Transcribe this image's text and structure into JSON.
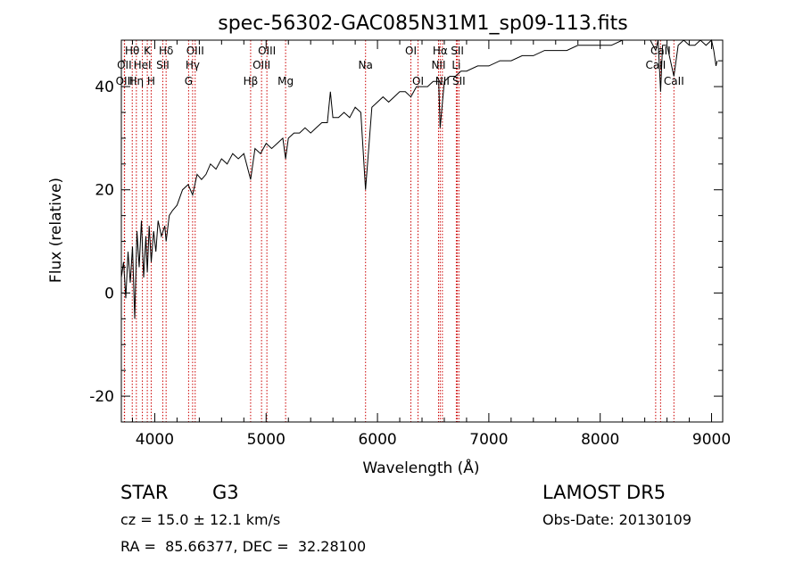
{
  "chart_data": {
    "type": "line",
    "title": "spec-56302-GAC085N31M1_sp09-113.fits",
    "xlabel": "Wavelength (Å)",
    "ylabel": "Flux (relative)",
    "xlim": [
      3700,
      9100
    ],
    "ylim": [
      -25,
      49
    ],
    "x_ticks": [
      4000,
      5000,
      6000,
      7000,
      8000,
      9000
    ],
    "y_ticks": [
      -20,
      0,
      20,
      40
    ],
    "grid": false,
    "series": [
      {
        "x": [
          3700,
          3720,
          3740,
          3760,
          3780,
          3800,
          3820,
          3840,
          3860,
          3880,
          3900,
          3920,
          3933,
          3950,
          3968,
          3990,
          4010,
          4030,
          4060,
          4090,
          4102,
          4130,
          4160,
          4200,
          4250,
          4300,
          4340,
          4380,
          4420,
          4460,
          4500,
          4550,
          4600,
          4650,
          4700,
          4750,
          4800,
          4861,
          4900,
          4950,
          5000,
          5050,
          5100,
          5150,
          5175,
          5200,
          5250,
          5300,
          5350,
          5400,
          5450,
          5500,
          5550,
          5577,
          5600,
          5650,
          5700,
          5750,
          5800,
          5850,
          5893,
          5950,
          6000,
          6050,
          6100,
          6150,
          6200,
          6250,
          6300,
          6350,
          6400,
          6450,
          6500,
          6550,
          6563,
          6600,
          6650,
          6700,
          6750,
          6800,
          6900,
          7000,
          7100,
          7200,
          7300,
          7400,
          7500,
          7600,
          7700,
          7800,
          7900,
          8000,
          8100,
          8200,
          8300,
          8400,
          8450,
          8498,
          8520,
          8542,
          8560,
          8600,
          8662,
          8700,
          8750,
          8800,
          8850,
          8900,
          8950,
          9000,
          9020,
          9040,
          9050
        ],
        "y": [
          3,
          6,
          -1,
          8,
          2,
          9,
          -5,
          12,
          5,
          14,
          3,
          11,
          4,
          13,
          6,
          12,
          8,
          14,
          11,
          13,
          10,
          15,
          16,
          17,
          20,
          21,
          19,
          23,
          22,
          23,
          25,
          24,
          26,
          25,
          27,
          26,
          27,
          22,
          28,
          27,
          29,
          28,
          29,
          30,
          26,
          30,
          31,
          31,
          32,
          31,
          32,
          33,
          33,
          39,
          34,
          34,
          35,
          34,
          36,
          35,
          20,
          36,
          37,
          38,
          37,
          38,
          39,
          39,
          38,
          40,
          40,
          40,
          41,
          41,
          32,
          41,
          42,
          42,
          43,
          43,
          44,
          44,
          45,
          45,
          46,
          46,
          47,
          47,
          47,
          48,
          48,
          48,
          48,
          49,
          49,
          49,
          49,
          47,
          49,
          39,
          48,
          48,
          42,
          48,
          49,
          48,
          48,
          49,
          48,
          49,
          47,
          44,
          45
        ]
      }
    ],
    "lines": [
      {
        "label": "Hθ",
        "x": 3798,
        "row": 0
      },
      {
        "label": "K",
        "x": 3933,
        "row": 0
      },
      {
        "label": "Hδ",
        "x": 4102,
        "row": 0
      },
      {
        "label": "OIII",
        "x": 4363,
        "row": 0
      },
      {
        "label": "OIII",
        "x": 5007,
        "row": 0
      },
      {
        "label": "OI",
        "x": 6300,
        "row": 0
      },
      {
        "label": "Hα",
        "x": 6563,
        "row": 0
      },
      {
        "label": "SII",
        "x": 6717,
        "row": 0
      },
      {
        "label": "CaII",
        "x": 8542,
        "row": 0
      },
      {
        "label": "OII",
        "x": 3727,
        "row": 1
      },
      {
        "label": "HeI",
        "x": 3889,
        "row": 1
      },
      {
        "label": "SII",
        "x": 4072,
        "row": 1
      },
      {
        "label": "Hγ",
        "x": 4340,
        "row": 1
      },
      {
        "label": "OIII",
        "x": 4959,
        "row": 1
      },
      {
        "label": "Na",
        "x": 5893,
        "row": 1
      },
      {
        "label": "NII",
        "x": 6548,
        "row": 1
      },
      {
        "label": "Li",
        "x": 6708,
        "row": 1
      },
      {
        "label": "CaII",
        "x": 8498,
        "row": 1
      },
      {
        "label": "OIII",
        "x": 3729,
        "row": 2
      },
      {
        "label": "Hη",
        "x": 3835,
        "row": 2
      },
      {
        "label": "H",
        "x": 3968,
        "row": 2
      },
      {
        "label": "G",
        "x": 4304,
        "row": 2
      },
      {
        "label": "Hβ",
        "x": 4861,
        "row": 2
      },
      {
        "label": "Mg",
        "x": 5175,
        "row": 2
      },
      {
        "label": "OI",
        "x": 6364,
        "row": 2
      },
      {
        "label": "NII",
        "x": 6583,
        "row": 2
      },
      {
        "label": "SII",
        "x": 6731,
        "row": 2
      },
      {
        "label": "CaII",
        "x": 8662,
        "row": 2
      }
    ],
    "line_color": "#cc0000"
  },
  "info": {
    "obj_class": "STAR",
    "subclass": "G3",
    "survey": "LAMOST DR5",
    "cz": "cz = 15.0 ± 12.1 km/s",
    "obs_date": "Obs-Date: 20130109",
    "coords": "RA =  85.66377, DEC =  32.28100"
  }
}
